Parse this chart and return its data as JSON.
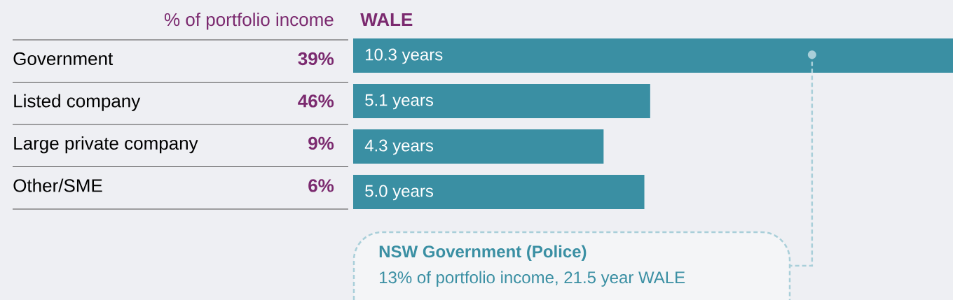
{
  "chart_data": {
    "type": "bar",
    "orientation": "horizontal",
    "xlabel": "WALE",
    "categories": [
      "Government",
      "Listed company",
      "Large private company",
      "Other/SME"
    ],
    "values": [
      10.3,
      5.1,
      4.3,
      5.0
    ],
    "value_labels": [
      "10.3 years",
      "5.1 years",
      "4.3 years",
      "5.0 years"
    ],
    "color": "#3a8fa3",
    "annotations": [
      "% of portfolio income",
      "39%",
      "46%",
      "9%",
      "6%",
      "NSW Government (Police)",
      "13% of portfolio income, 21.5 year WALE"
    ]
  }
}
